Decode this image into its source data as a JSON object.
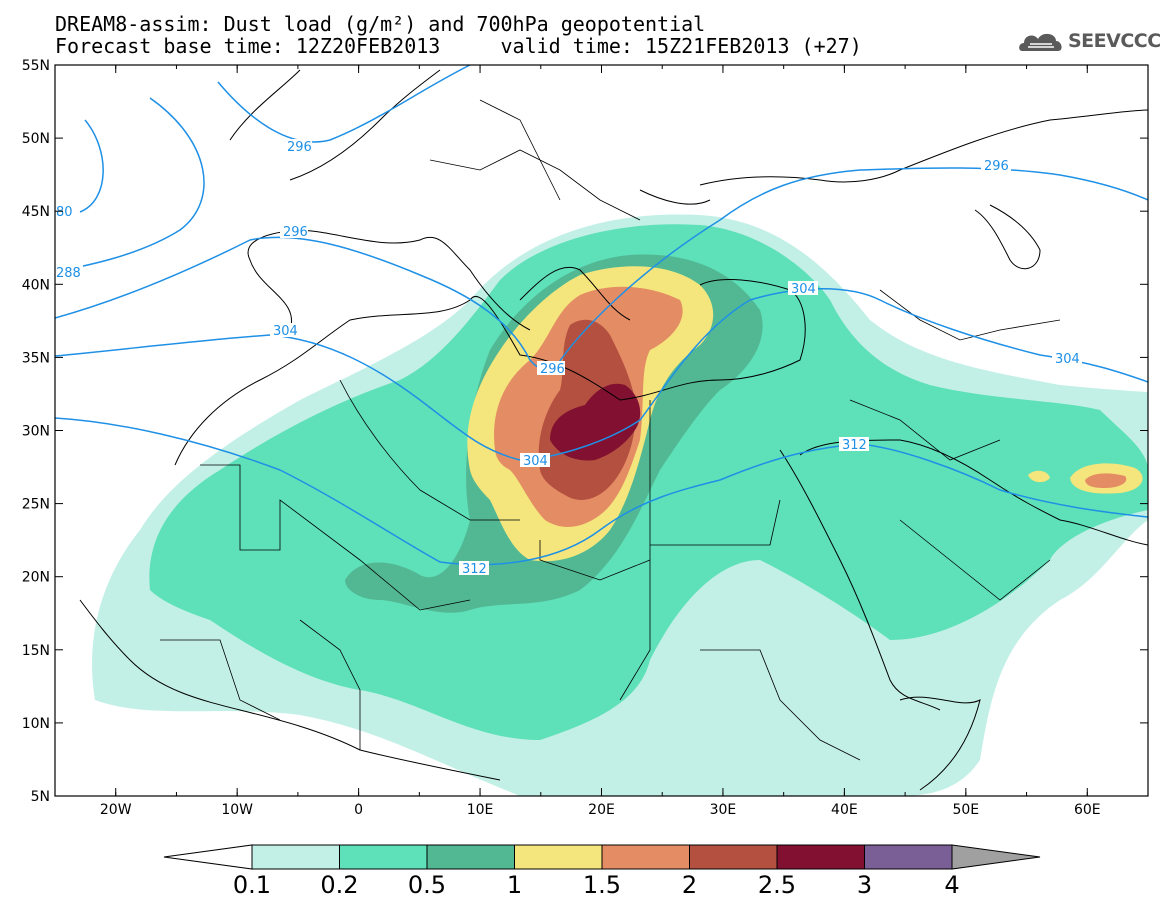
{
  "title": {
    "line1": "DREAM8-assim: Dust load (g/m²) and 700hPa geopotential",
    "line2": "Forecast base time: 12Z20FEB2013     valid time: 15Z21FEB2013 (+27)"
  },
  "logo": {
    "text": "SEEVCCC",
    "icon": "cloud-logo-icon"
  },
  "axes": {
    "lon_ticks": [
      "20W",
      "10W",
      "0",
      "10E",
      "20E",
      "30E",
      "40E",
      "50E",
      "60E"
    ],
    "lat_ticks": [
      "55N",
      "50N",
      "45N",
      "40N",
      "35N",
      "30N",
      "25N",
      "20N",
      "15N",
      "10N",
      "5N"
    ],
    "lon_range": [
      -25,
      65
    ],
    "lat_range": [
      5,
      55
    ]
  },
  "colorbar": {
    "labels": [
      "0.1",
      "0.2",
      "0.5",
      "1",
      "1.5",
      "2",
      "2.5",
      "3",
      "4"
    ],
    "colors": [
      "#c2f0e6",
      "#5ee0b8",
      "#52b894",
      "#f4e67c",
      "#e48c64",
      "#b45040",
      "#821030",
      "#7a5e96",
      "#a0a0a0"
    ]
  },
  "contours": {
    "labels": [
      "296",
      "296",
      "304",
      "304",
      "304",
      "312",
      "312",
      "296",
      "304",
      "288",
      "80",
      "296"
    ]
  }
}
